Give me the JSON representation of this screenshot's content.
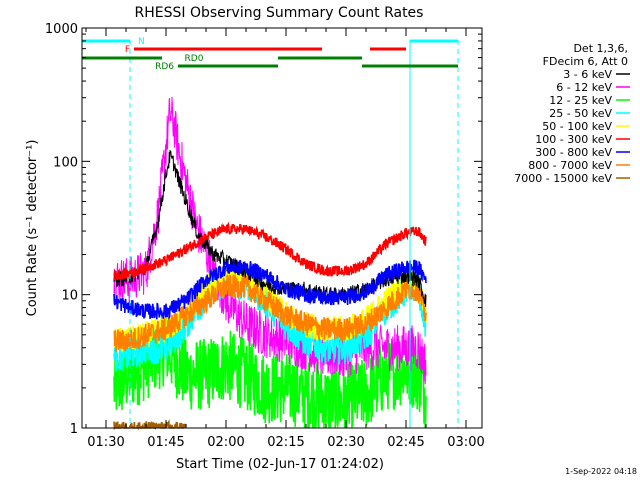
{
  "chart_data": {
    "type": "line",
    "title": "RHESSI Observing Summary Count Rates",
    "xlabel": "Start Time (02-Jun-17 01:24:02)",
    "ylabel": "Count Rate (s⁻¹ detector⁻¹)",
    "yscale": "log",
    "xlim": [
      "01:24",
      "03:04"
    ],
    "ylim": [
      1,
      1000
    ],
    "x_ticks": [
      "01:30",
      "01:45",
      "02:00",
      "02:15",
      "02:30",
      "02:45",
      "03:00"
    ],
    "y_ticks": [
      "1",
      "10",
      "100",
      "1000"
    ],
    "legend": {
      "position": "right",
      "header": [
        "Det 1,3,6,",
        "FDecim 6, Att 0"
      ],
      "entries": [
        {
          "label": "3 - 6 keV",
          "color": "#000000"
        },
        {
          "label": "6 - 12 keV",
          "color": "#ff00ff"
        },
        {
          "label": "12 - 25 keV",
          "color": "#00ff00"
        },
        {
          "label": "25 - 50 keV",
          "color": "#00ffff"
        },
        {
          "label": "50 - 100 keV",
          "color": "#ffff00"
        },
        {
          "label": "100 - 300 keV",
          "color": "#ff0000"
        },
        {
          "label": "300 - 800 keV",
          "color": "#0000ff"
        },
        {
          "label": "800 - 7000 keV",
          "color": "#ff8000"
        },
        {
          "label": "7000 - 15000 keV",
          "color": "#a06000"
        }
      ]
    },
    "state_bars": [
      {
        "label": "N",
        "color": "#00ffff",
        "segments": [
          [
            "01:24",
            "01:36"
          ],
          [
            "02:46",
            "02:58"
          ]
        ]
      },
      {
        "label": "F",
        "color": "#ff0000",
        "segments": [
          [
            "01:37",
            "02:24"
          ],
          [
            "02:36",
            "02:45"
          ]
        ]
      },
      {
        "label": "RD0",
        "color": "#008000",
        "segments": [
          [
            "01:24",
            "01:44"
          ],
          [
            "02:13",
            "02:34"
          ]
        ]
      },
      {
        "label": "RD6",
        "color": "#008000",
        "segments": [
          [
            "01:48",
            "02:13"
          ],
          [
            "02:34",
            "02:58"
          ]
        ]
      }
    ],
    "vlines": [
      {
        "time": "01:36",
        "color": "#00ffff",
        "style": "dashed"
      },
      {
        "time": "02:46",
        "color": "#00ffff",
        "style": "solid"
      },
      {
        "time": "02:58",
        "color": "#00ffff",
        "style": "dashed"
      }
    ],
    "series": [
      {
        "name": "3 - 6 keV",
        "color": "#000000",
        "x": [
          "01:32",
          "01:36",
          "01:40",
          "01:43",
          "01:45",
          "01:46",
          "01:47",
          "01:48",
          "01:50",
          "01:53",
          "01:57",
          "02:00",
          "02:05",
          "02:10",
          "02:15",
          "02:20",
          "02:25",
          "02:30",
          "02:35",
          "02:40",
          "02:45",
          "02:48",
          "02:50"
        ],
        "y": [
          13,
          13.5,
          16,
          35,
          80,
          110,
          95,
          75,
          50,
          28,
          20,
          18,
          15,
          12,
          11,
          11,
          10,
          10,
          11,
          13,
          14,
          13,
          9
        ]
      },
      {
        "name": "6 - 12 keV",
        "color": "#ff00ff",
        "x": [
          "01:32",
          "01:36",
          "01:40",
          "01:43",
          "01:45",
          "01:46",
          "01:47",
          "01:48",
          "01:50",
          "01:53",
          "01:57",
          "02:00",
          "02:05",
          "02:10",
          "02:15",
          "02:20",
          "02:25",
          "02:30",
          "02:35",
          "02:40",
          "02:45",
          "02:48",
          "02:50"
        ],
        "y": [
          13,
          13,
          15,
          40,
          130,
          230,
          190,
          130,
          70,
          30,
          15,
          9,
          6,
          5,
          4.5,
          4,
          3.5,
          3.5,
          4,
          4,
          4,
          4,
          3
        ]
      },
      {
        "name": "12 - 25 keV",
        "color": "#00ff00",
        "x": [
          "01:32",
          "01:36",
          "01:40",
          "01:45",
          "01:50",
          "01:55",
          "02:00",
          "02:05",
          "02:10",
          "02:15",
          "02:20",
          "02:25",
          "02:30",
          "02:35",
          "02:40",
          "02:45",
          "02:48",
          "02:50"
        ],
        "y": [
          2,
          2.5,
          3,
          4,
          2.5,
          2.5,
          3,
          2.5,
          2,
          2,
          1.8,
          1.6,
          1.6,
          1.8,
          2.5,
          2.8,
          2.5,
          1.8
        ]
      },
      {
        "name": "25 - 50 keV",
        "color": "#00ffff",
        "x": [
          "01:32",
          "01:36",
          "01:40",
          "01:45",
          "01:50",
          "01:55",
          "02:00",
          "02:05",
          "02:10",
          "02:15",
          "02:20",
          "02:25",
          "02:30",
          "02:35",
          "02:40",
          "02:45",
          "02:48",
          "02:50"
        ],
        "y": [
          3.5,
          3.6,
          4,
          4,
          6,
          10,
          13,
          12,
          9,
          6,
          4.5,
          4,
          4,
          5,
          8,
          11,
          12,
          6
        ]
      },
      {
        "name": "50 - 100 keV",
        "color": "#ffff00",
        "x": [
          "01:32",
          "01:36",
          "01:40",
          "01:45",
          "01:50",
          "01:55",
          "02:00",
          "02:05",
          "02:10",
          "02:15",
          "02:20",
          "02:25",
          "02:30",
          "02:35",
          "02:40",
          "02:45",
          "02:48",
          "02:50"
        ],
        "y": [
          4.5,
          4.6,
          5,
          5.5,
          7,
          11,
          14,
          13,
          10,
          7,
          6,
          5.5,
          5.5,
          6.5,
          9,
          12,
          12,
          7
        ]
      },
      {
        "name": "100 - 300 keV",
        "color": "#ff0000",
        "x": [
          "01:32",
          "01:36",
          "01:40",
          "01:45",
          "01:50",
          "01:55",
          "02:00",
          "02:05",
          "02:10",
          "02:15",
          "02:20",
          "02:25",
          "02:30",
          "02:35",
          "02:40",
          "02:45",
          "02:48",
          "02:50"
        ],
        "y": [
          14,
          14.5,
          16,
          18,
          22,
          27,
          31,
          31,
          27,
          22,
          17,
          15,
          15,
          17,
          24,
          29,
          30,
          25
        ]
      },
      {
        "name": "300 - 800 keV",
        "color": "#0000ff",
        "x": [
          "01:32",
          "01:36",
          "01:40",
          "01:45",
          "01:50",
          "01:55",
          "02:00",
          "02:05",
          "02:10",
          "02:15",
          "02:20",
          "02:25",
          "02:30",
          "02:35",
          "02:40",
          "02:45",
          "02:48",
          "02:50"
        ],
        "y": [
          9,
          8,
          7.5,
          7.5,
          9,
          13,
          16,
          16,
          14,
          11,
          10,
          9.5,
          9.5,
          10.5,
          14,
          16,
          16,
          13
        ]
      },
      {
        "name": "800 - 7000 keV",
        "color": "#ff8000",
        "x": [
          "01:32",
          "01:36",
          "01:40",
          "01:45",
          "01:50",
          "01:55",
          "02:00",
          "02:05",
          "02:10",
          "02:15",
          "02:20",
          "02:25",
          "02:30",
          "02:35",
          "02:40",
          "02:45",
          "02:48",
          "02:50"
        ],
        "y": [
          4.5,
          4.5,
          5,
          5.5,
          7,
          9,
          11.5,
          11.5,
          9,
          7,
          6,
          5.5,
          5.5,
          6,
          8,
          11,
          11,
          7
        ]
      },
      {
        "name": "7000 - 15000 keV",
        "color": "#a06000",
        "x": [
          "01:32",
          "01:50"
        ],
        "y": [
          1.0,
          1.0
        ]
      }
    ]
  },
  "footer": {
    "timestamp": "1-Sep-2022 04:18"
  }
}
